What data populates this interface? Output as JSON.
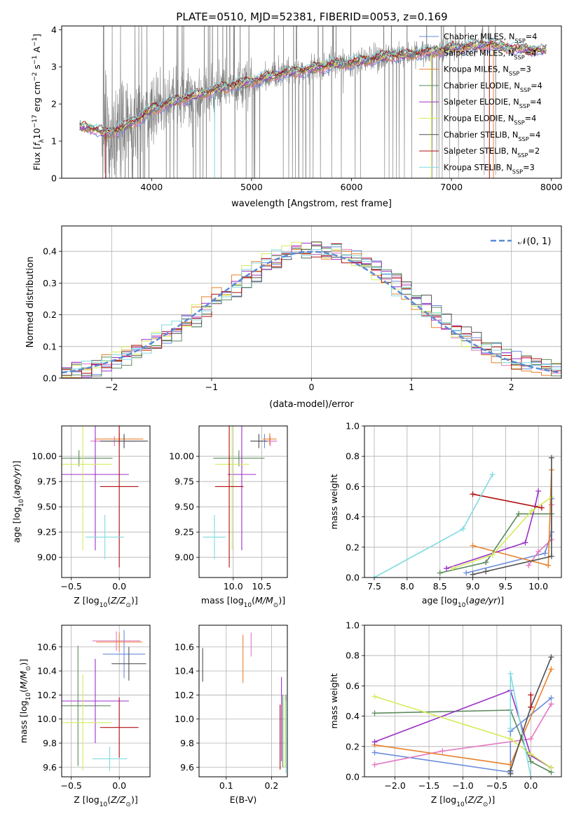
{
  "figure": {
    "title": "PLATE=0510, MJD=52381, FIBERID=0053, z=0.169"
  },
  "colors": {
    "chabrier_miles": "#6a8ddb",
    "salpeter_miles": "#e377c2",
    "kroupa_miles": "#e8822c",
    "chabrier_elodie": "#5c8a5c",
    "salpeter_elodie": "#9b30c8",
    "kroupa_elodie": "#d4ec5a",
    "chabrier_stelib": "#505050",
    "salpeter_stelib": "#b01010",
    "kroupa_stelib": "#7fdbe0",
    "data": "#808080",
    "normal": "#5b8bd6",
    "grid": "#b0b0b0"
  },
  "chart_data": [
    {
      "id": "spectrum",
      "type": "line",
      "xlabel": "wavelength [Angstrom, rest frame]",
      "ylabel": "Flux [f_λ 10^-17 erg cm^-2 s^-1 A^-1]",
      "ylabel_parts": {
        "main": "Flux [",
        "f": "f",
        "lambda": "λ",
        "ten": "10",
        "exp1": "−17",
        "erg": " erg cm",
        "exp2": "−2",
        "s": " s",
        "exp3": "−1",
        "A": " A",
        "exp4": "−1",
        "close": "]"
      },
      "xlim": [
        3100,
        8100
      ],
      "ylim": [
        0,
        4.1
      ],
      "xticks": [
        4000,
        5000,
        6000,
        7000,
        8000
      ],
      "yticks": [
        0,
        1,
        2,
        3,
        4
      ],
      "legend_position": "top-right",
      "continuum": {
        "x": [
          3280,
          3400,
          3550,
          3700,
          3850,
          4000,
          4200,
          4400,
          4600,
          4800,
          5000,
          5200,
          5400,
          5600,
          5800,
          6000,
          6200,
          6400,
          6600,
          6800,
          7000,
          7200,
          7400,
          7600,
          7800
        ],
        "y": [
          1.4,
          1.35,
          1.2,
          1.35,
          1.55,
          1.85,
          2.05,
          2.2,
          2.35,
          2.5,
          2.6,
          2.75,
          2.85,
          2.95,
          3.05,
          3.1,
          3.2,
          3.3,
          3.35,
          3.4,
          3.5,
          3.55,
          3.6,
          3.5,
          3.45
        ]
      },
      "legend": [
        {
          "key": "chabrier_miles",
          "base": "Chabrier MILES, N",
          "sub": "SSP",
          "tail": "=4"
        },
        {
          "key": "salpeter_miles",
          "base": "Salpeter MILES, N",
          "sub": "SSP",
          "tail": "=4"
        },
        {
          "key": "kroupa_miles",
          "base": "Kroupa MILES, N",
          "sub": "SSP",
          "tail": "=3"
        },
        {
          "key": "chabrier_elodie",
          "base": "Chabrier ELODIE, N",
          "sub": "SSP",
          "tail": "=4"
        },
        {
          "key": "salpeter_elodie",
          "base": "Salpeter ELODIE, N",
          "sub": "SSP",
          "tail": "=4"
        },
        {
          "key": "kroupa_elodie",
          "base": "Kroupa ELODIE, N",
          "sub": "SSP",
          "tail": "=4"
        },
        {
          "key": "chabrier_stelib",
          "base": "Chabrier STELIB, N",
          "sub": "SSP",
          "tail": "=4"
        },
        {
          "key": "salpeter_stelib",
          "base": "Salpeter STELIB, N",
          "sub": "SSP",
          "tail": "=2"
        },
        {
          "key": "kroupa_stelib",
          "base": "Kroupa STELIB, N",
          "sub": "SSP",
          "tail": "=3"
        }
      ]
    },
    {
      "id": "residuals",
      "type": "bar",
      "xlabel": "(data-model)/error",
      "ylabel": "Normed distribution",
      "xlim": [
        -2.5,
        2.5
      ],
      "ylim": [
        0,
        0.48
      ],
      "xticks": [
        -2,
        -1,
        0,
        1,
        2
      ],
      "yticks": [
        0.0,
        0.1,
        0.2,
        0.3,
        0.4
      ],
      "grid": true,
      "bin_width": 0.1,
      "normal_legend": "𝒩(0, 1)",
      "legend_position": "top-right"
    },
    {
      "id": "age_vs_Z",
      "type": "scatter",
      "xlabel_parts": {
        "main": "Z [log",
        "sub": "10",
        "rest": "(Z/Z",
        "sun": "⊙",
        "close": ")]"
      },
      "ylabel_parts": {
        "main": "age  [log",
        "sub": "10",
        "rest": "(age/yr)]"
      },
      "xlim": [
        -0.6,
        0.32
      ],
      "ylim": [
        8.8,
        10.3
      ],
      "xticks": [
        -0.5,
        0.0
      ],
      "yticks": [
        9.0,
        9.25,
        9.5,
        9.75,
        10.0
      ],
      "grid": true,
      "points": [
        {
          "key": "chabrier_miles",
          "x": 0.05,
          "y": 10.15,
          "xerr": 0.22,
          "yerr": 0.07
        },
        {
          "key": "salpeter_miles",
          "x": -0.05,
          "y": 10.15,
          "xerr": 0.25,
          "yerr": 0.05
        },
        {
          "key": "kroupa_miles",
          "x": 0.0,
          "y": 10.17,
          "xerr": 0.25,
          "yerr": 0.06
        },
        {
          "key": "chabrier_elodie",
          "x": -0.42,
          "y": 9.98,
          "xerr": 0.35,
          "yerr": 0.08
        },
        {
          "key": "salpeter_elodie",
          "x": -0.25,
          "y": 9.82,
          "xerr": 0.35,
          "yerr": 0.75
        },
        {
          "key": "kroupa_elodie",
          "x": -0.38,
          "y": 9.92,
          "xerr": 0.3,
          "yerr": 0.85
        },
        {
          "key": "chabrier_stelib",
          "x": 0.05,
          "y": 10.15,
          "xerr": 0.25,
          "yerr": 0.07
        },
        {
          "key": "salpeter_stelib",
          "x": 0.0,
          "y": 9.7,
          "xerr": 0.2,
          "yerr": 0.8
        },
        {
          "key": "kroupa_stelib",
          "x": -0.15,
          "y": 9.2,
          "xerr": 0.2,
          "yerr": 0.22
        }
      ]
    },
    {
      "id": "age_vs_mass",
      "type": "scatter",
      "xlabel_parts": {
        "main": "mass [log",
        "sub": "10",
        "rest": "(M/M",
        "sun": "⊙",
        "close": ")]"
      },
      "xlim": [
        9.4,
        10.95
      ],
      "ylim": [
        8.8,
        10.3
      ],
      "xticks": [
        10.0,
        10.5
      ],
      "yticks": [
        9.0,
        9.25,
        9.5,
        9.75,
        10.0
      ],
      "grid": true,
      "points": [
        {
          "key": "chabrier_miles",
          "x": 10.55,
          "y": 10.15,
          "xerr": 0.2,
          "yerr": 0.07
        },
        {
          "key": "salpeter_miles",
          "x": 10.65,
          "y": 10.15,
          "xerr": 0.12,
          "yerr": 0.05
        },
        {
          "key": "kroupa_miles",
          "x": 10.64,
          "y": 10.17,
          "xerr": 0.12,
          "yerr": 0.06
        },
        {
          "key": "chabrier_elodie",
          "x": 10.1,
          "y": 9.98,
          "xerr": 0.45,
          "yerr": 0.08
        },
        {
          "key": "salpeter_elodie",
          "x": 10.15,
          "y": 9.82,
          "xerr": 0.25,
          "yerr": 0.75
        },
        {
          "key": "kroupa_elodie",
          "x": 9.98,
          "y": 9.92,
          "xerr": 0.3,
          "yerr": 0.85
        },
        {
          "key": "chabrier_stelib",
          "x": 10.45,
          "y": 10.15,
          "xerr": 0.15,
          "yerr": 0.07
        },
        {
          "key": "salpeter_stelib",
          "x": 9.93,
          "y": 9.7,
          "xerr": 0.25,
          "yerr": 0.8
        },
        {
          "key": "kroupa_stelib",
          "x": 9.67,
          "y": 9.2,
          "xerr": 0.2,
          "yerr": 0.22
        }
      ]
    },
    {
      "id": "weight_vs_age",
      "type": "line",
      "xlabel_parts": {
        "main": "age  [log",
        "sub": "10",
        "rest": "(age/yr)]"
      },
      "ylabel": "mass weight",
      "xlim": [
        7.35,
        10.35
      ],
      "ylim": [
        0,
        1.0
      ],
      "xticks": [
        7.5,
        8.0,
        8.5,
        9.0,
        9.5,
        10.0
      ],
      "yticks": [
        0.0,
        0.2,
        0.4,
        0.6,
        0.8,
        1.0
      ],
      "grid": true,
      "series": [
        {
          "key": "chabrier_miles",
          "x": [
            8.9,
            10.1,
            10.2,
            10.2
          ],
          "y": [
            0.03,
            0.16,
            0.3,
            0.52
          ]
        },
        {
          "key": "salpeter_miles",
          "x": [
            9.85,
            10.0,
            10.2,
            10.2
          ],
          "y": [
            0.08,
            0.17,
            0.25,
            0.48
          ]
        },
        {
          "key": "kroupa_miles",
          "x": [
            9.0,
            10.15,
            10.2
          ],
          "y": [
            0.21,
            0.08,
            0.71
          ]
        },
        {
          "key": "chabrier_elodie",
          "x": [
            8.5,
            9.2,
            9.7,
            10.2
          ],
          "y": [
            0.03,
            0.1,
            0.42,
            0.42
          ]
        },
        {
          "key": "salpeter_elodie",
          "x": [
            8.6,
            9.8,
            9.95,
            10.0
          ],
          "y": [
            0.06,
            0.23,
            0.47,
            0.57
          ]
        },
        {
          "key": "kroupa_elodie",
          "x": [
            8.7,
            9.3,
            9.9,
            10.2
          ],
          "y": [
            0.06,
            0.15,
            0.44,
            0.53
          ]
        },
        {
          "key": "chabrier_stelib",
          "x": [
            9.0,
            9.2,
            10.2,
            10.2
          ],
          "y": [
            0.02,
            0.04,
            0.14,
            0.79
          ]
        },
        {
          "key": "salpeter_stelib",
          "x": [
            9.0,
            10.05
          ],
          "y": [
            0.55,
            0.46
          ]
        },
        {
          "key": "kroupa_stelib",
          "x": [
            7.5,
            8.85,
            9.3
          ],
          "y": [
            0.0,
            0.32,
            0.68
          ]
        }
      ]
    },
    {
      "id": "mass_vs_Z",
      "type": "scatter",
      "xlabel_parts": {
        "main": "Z [log",
        "sub": "10",
        "rest": "(Z/Z",
        "sun": "⊙",
        "close": ")]"
      },
      "ylabel_parts": {
        "main": "mass [log",
        "sub": "10",
        "rest": "(M/M",
        "sun": "⊙",
        "close": ")]"
      },
      "xlim": [
        -0.6,
        0.32
      ],
      "ylim": [
        9.52,
        10.78
      ],
      "xticks": [
        -0.5,
        0.0
      ],
      "yticks": [
        9.6,
        9.8,
        10.0,
        10.2,
        10.4,
        10.6
      ],
      "grid": true,
      "points": [
        {
          "key": "chabrier_miles",
          "x": 0.05,
          "y": 10.54,
          "xerr": 0.22,
          "yerr": 0.2
        },
        {
          "key": "salpeter_miles",
          "x": -0.03,
          "y": 10.65,
          "xerr": 0.25,
          "yerr": 0.08
        },
        {
          "key": "kroupa_miles",
          "x": 0.0,
          "y": 10.64,
          "xerr": 0.24,
          "yerr": 0.08
        },
        {
          "key": "chabrier_elodie",
          "x": -0.43,
          "y": 10.11,
          "xerr": 0.34,
          "yerr": 0.5
        },
        {
          "key": "salpeter_elodie",
          "x": -0.25,
          "y": 10.15,
          "xerr": 0.35,
          "yerr": 0.35
        },
        {
          "key": "kroupa_elodie",
          "x": -0.38,
          "y": 9.97,
          "xerr": 0.3,
          "yerr": 0.4
        },
        {
          "key": "chabrier_stelib",
          "x": 0.1,
          "y": 10.46,
          "xerr": 0.18,
          "yerr": 0.14
        },
        {
          "key": "salpeter_stelib",
          "x": 0.0,
          "y": 9.93,
          "xerr": 0.2,
          "yerr": 0.25
        },
        {
          "key": "kroupa_stelib",
          "x": -0.1,
          "y": 9.67,
          "xerr": 0.18,
          "yerr": 0.1
        }
      ]
    },
    {
      "id": "mass_vs_ebv",
      "type": "scatter",
      "xlabel": "E(B-V)",
      "xlim": [
        0.04,
        0.235
      ],
      "ylim": [
        9.52,
        10.78
      ],
      "xticks": [
        0.1,
        0.2
      ],
      "yticks": [
        9.6,
        9.8,
        10.0,
        10.2,
        10.4,
        10.6
      ],
      "grid": true,
      "points": [
        {
          "key": "chabrier_miles",
          "x": 0.232,
          "y": 9.9,
          "yerr": 0.3
        },
        {
          "key": "salpeter_miles",
          "x": 0.155,
          "y": 10.62,
          "yerr": 0.1
        },
        {
          "key": "kroupa_miles",
          "x": 0.137,
          "y": 10.5,
          "yerr": 0.2
        },
        {
          "key": "chabrier_elodie",
          "x": 0.225,
          "y": 9.9,
          "yerr": 0.3
        },
        {
          "key": "salpeter_elodie",
          "x": 0.222,
          "y": 10.0,
          "yerr": 0.35
        },
        {
          "key": "kroupa_elodie",
          "x": 0.23,
          "y": 9.9,
          "yerr": 0.3
        },
        {
          "key": "chabrier_stelib",
          "x": 0.048,
          "y": 10.45,
          "yerr": 0.14
        },
        {
          "key": "salpeter_stelib",
          "x": 0.219,
          "y": 9.85,
          "yerr": 0.27
        },
        {
          "key": "kroupa_stelib",
          "x": 0.232,
          "y": 9.85,
          "yerr": 0.3
        }
      ]
    },
    {
      "id": "weight_vs_Z",
      "type": "line",
      "xlabel_parts": {
        "main": "Z [log",
        "sub": "10",
        "rest": "(Z/Z",
        "sun": "⊙",
        "close": ")]"
      },
      "ylabel": "mass weight",
      "xlim": [
        -2.45,
        0.45
      ],
      "ylim": [
        0,
        1.0
      ],
      "xticks": [
        -2.0,
        -1.5,
        -1.0,
        -0.5,
        0.0
      ],
      "yticks": [
        0.0,
        0.2,
        0.4,
        0.6,
        0.8,
        1.0
      ],
      "grid": true,
      "series": [
        {
          "key": "chabrier_miles",
          "x": [
            -2.3,
            -0.3,
            -0.3,
            0.3
          ],
          "y": [
            0.16,
            0.03,
            0.3,
            0.52
          ]
        },
        {
          "key": "salpeter_miles",
          "x": [
            -2.3,
            -1.3,
            0.0,
            0.3
          ],
          "y": [
            0.08,
            0.17,
            0.25,
            0.48
          ]
        },
        {
          "key": "kroupa_miles",
          "x": [
            -2.3,
            -0.3,
            0.3
          ],
          "y": [
            0.21,
            0.08,
            0.71
          ]
        },
        {
          "key": "chabrier_elodie",
          "x": [
            -2.3,
            -0.3,
            0.0,
            0.3
          ],
          "y": [
            0.42,
            0.44,
            0.1,
            0.03
          ]
        },
        {
          "key": "salpeter_elodie",
          "x": [
            -2.3,
            -0.3,
            0.0,
            0.3
          ],
          "y": [
            0.23,
            0.57,
            0.14,
            0.06
          ]
        },
        {
          "key": "kroupa_elodie",
          "x": [
            -2.3,
            -0.3,
            0.0,
            0.3
          ],
          "y": [
            0.53,
            0.25,
            0.15,
            0.06
          ]
        },
        {
          "key": "chabrier_stelib",
          "x": [
            -0.3,
            -0.3,
            0.0,
            0.3
          ],
          "y": [
            0.02,
            0.04,
            0.46,
            0.79
          ]
        },
        {
          "key": "salpeter_stelib",
          "x": [
            0.0,
            0.0
          ],
          "y": [
            0.46,
            0.54
          ]
        },
        {
          "key": "kroupa_stelib",
          "x": [
            -0.3,
            -0.3,
            0.0
          ],
          "y": [
            0.32,
            0.68,
            0.0
          ]
        }
      ]
    }
  ]
}
